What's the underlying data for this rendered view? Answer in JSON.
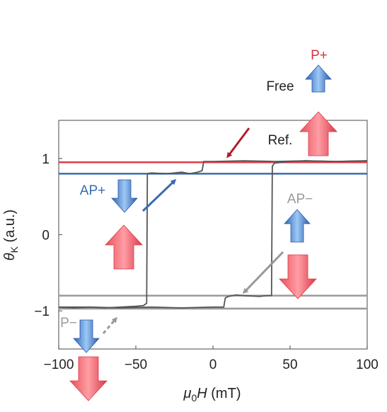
{
  "chart_data": {
    "type": "line",
    "xlabel": "μ0H (mT)",
    "xlabel_parts": {
      "mu": "μ",
      "sub0": "0",
      "H": "H",
      "unit": " (mT)"
    },
    "ylabel": "θK (a.u.)",
    "ylabel_parts": {
      "theta": "θ",
      "subK": "K",
      "unit": " (a.u.)"
    },
    "xlim": [
      -100,
      100
    ],
    "ylim": [
      -1.5,
      1.5
    ],
    "xticks": [
      -100,
      -50,
      0,
      50,
      100
    ],
    "xtick_labels": [
      "−100",
      "−50",
      "0",
      "50",
      "100"
    ],
    "yticks": [
      1,
      0,
      -1
    ],
    "ytick_labels": [
      "1",
      "0",
      "−1"
    ],
    "grid": false,
    "reference_lines": [
      {
        "label": "P+",
        "y": 0.95,
        "color": "#e0414e"
      },
      {
        "label": "AP+",
        "y": 0.8,
        "color": "#3a6cb0"
      },
      {
        "label": "AP−",
        "y": -0.8,
        "color": "#9a9a9a"
      },
      {
        "label": "P−",
        "y": -0.97,
        "color": "#9a9a9a"
      }
    ],
    "series": [
      {
        "color": "#555555",
        "x": [
          -100,
          -90,
          -80,
          -70,
          -60,
          -50,
          -45,
          -43,
          -42.5,
          -40,
          -30,
          -20,
          -15,
          -10,
          -7,
          -6,
          0,
          20,
          40,
          60,
          80,
          100
        ],
        "y": [
          -0.95,
          -0.96,
          -0.95,
          -0.96,
          -0.95,
          -0.94,
          -0.93,
          -0.9,
          0.8,
          0.81,
          0.8,
          0.82,
          0.8,
          0.82,
          0.84,
          0.96,
          0.96,
          0.97,
          0.96,
          0.97,
          0.96,
          0.97
        ]
      },
      {
        "color": "#555555",
        "x": [
          100,
          80,
          60,
          50,
          45,
          40,
          38.5,
          38,
          35,
          30,
          20,
          15,
          10,
          8,
          7,
          0,
          -20,
          -40,
          -60,
          -80,
          -100
        ],
        "y": [
          0.97,
          0.96,
          0.97,
          0.96,
          0.95,
          0.94,
          0.9,
          -0.8,
          -0.8,
          -0.81,
          -0.8,
          -0.79,
          -0.81,
          -0.83,
          -0.95,
          -0.95,
          -0.96,
          -0.95,
          -0.96,
          -0.95,
          -0.95
        ]
      }
    ],
    "annotations": [
      {
        "text": "P+",
        "color": "#d6313f"
      },
      {
        "text": "Free",
        "color": "#222222"
      },
      {
        "text": "Ref.",
        "color": "#222222"
      },
      {
        "text": "AP+",
        "color": "#3a6cb0"
      },
      {
        "text": "AP−",
        "color": "#9a9a9a"
      },
      {
        "text": "P−",
        "color": "#9a9a9a"
      }
    ],
    "colors": {
      "red_arrow": "#e8505b",
      "blue_arrow": "#4a86d6",
      "dark_red_pointer": "#b01e2a",
      "blue_pointer": "#3a6cb0",
      "gray_pointer": "#999999",
      "loop": "#555555"
    }
  }
}
